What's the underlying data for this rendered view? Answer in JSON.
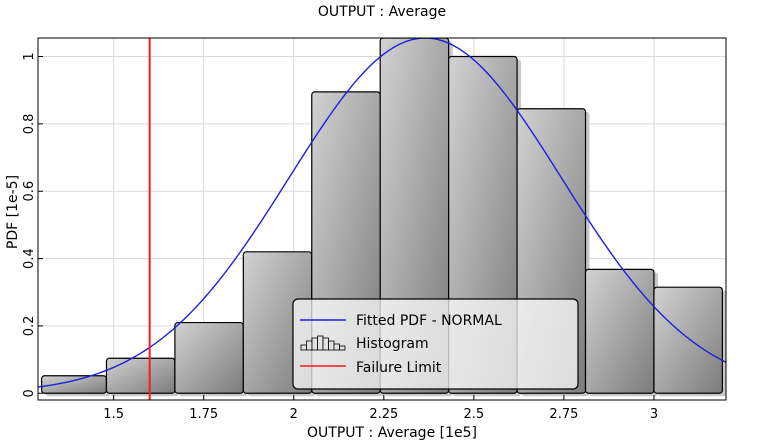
{
  "chart_data": {
    "type": "histogram",
    "title": "OUTPUT : Average",
    "xlabel": "OUTPUT : Average [1e5]",
    "ylabel": "PDF [1e-5]",
    "xlim": [
      1.29,
      3.2
    ],
    "ylim": [
      -0.02,
      1.055
    ],
    "x_ticks": [
      1.5,
      1.75,
      2,
      2.25,
      2.5,
      2.75,
      3
    ],
    "x_tick_labels": [
      "1.5",
      "1.75",
      "2",
      "2.25",
      "2.5",
      "2.75",
      "3"
    ],
    "y_ticks": [
      0,
      0.2,
      0.4,
      0.6,
      0.8,
      1
    ],
    "y_tick_labels": [
      "0",
      "0.2",
      "0.4",
      "0.6",
      "0.8",
      "1"
    ],
    "grid": true,
    "histogram": {
      "name": "Histogram",
      "color": "#a9a9a9",
      "bins": [
        {
          "x0": 1.3,
          "x1": 1.48,
          "value": 0.052
        },
        {
          "x0": 1.48,
          "x1": 1.67,
          "value": 0.104
        },
        {
          "x0": 1.67,
          "x1": 1.86,
          "value": 0.21
        },
        {
          "x0": 1.86,
          "x1": 2.05,
          "value": 0.42
        },
        {
          "x0": 2.05,
          "x1": 2.24,
          "value": 0.895
        },
        {
          "x0": 2.24,
          "x1": 2.43,
          "value": 1.055
        },
        {
          "x0": 2.43,
          "x1": 2.62,
          "value": 1.0
        },
        {
          "x0": 2.62,
          "x1": 2.81,
          "value": 0.845
        },
        {
          "x0": 2.81,
          "x1": 3.0,
          "value": 0.368
        },
        {
          "x0": 3.0,
          "x1": 3.19,
          "value": 0.315
        }
      ]
    },
    "fitted_pdf": {
      "name": "Fitted PDF - NORMAL",
      "distribution": "normal",
      "mean": 2.365,
      "std": 0.378,
      "peak": 1.055,
      "color": "#1f1fe0"
    },
    "failure_limit": {
      "name": "Failure Limit",
      "x": 1.6,
      "color": "#ff1a1a"
    },
    "legend": {
      "placement": "bottom-center",
      "entries": [
        "Fitted PDF - NORMAL",
        "Histogram",
        "Failure Limit"
      ]
    }
  }
}
